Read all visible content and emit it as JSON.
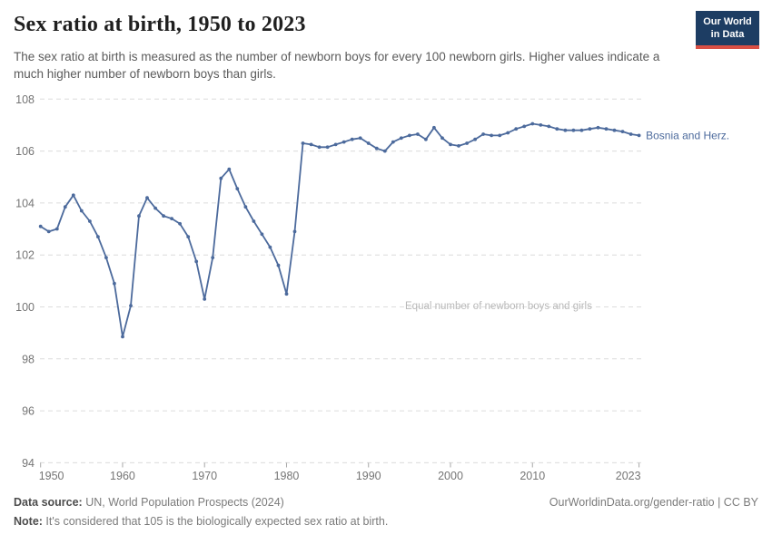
{
  "header": {
    "title": "Sex ratio at birth, 1950 to 2023",
    "subtitle": "The sex ratio at birth is measured as the number of newborn boys for every 100 newborn girls. Higher values indicate a much higher number of newborn boys than girls."
  },
  "logo": {
    "line1": "Our World",
    "line2": "in Data",
    "bg_color": "#1d3d63",
    "bar_color": "#d94f44"
  },
  "chart_data": {
    "type": "line",
    "title": "Sex ratio at birth, 1950 to 2023",
    "series": [
      {
        "name": "Bosnia and Herz.",
        "color": "#4c6a9c"
      }
    ],
    "years": [
      1950,
      1951,
      1952,
      1953,
      1954,
      1955,
      1956,
      1957,
      1958,
      1959,
      1960,
      1961,
      1962,
      1963,
      1964,
      1965,
      1966,
      1967,
      1968,
      1969,
      1970,
      1971,
      1972,
      1973,
      1974,
      1975,
      1976,
      1977,
      1978,
      1979,
      1980,
      1981,
      1982,
      1983,
      1984,
      1985,
      1986,
      1987,
      1988,
      1989,
      1990,
      1991,
      1992,
      1993,
      1994,
      1995,
      1996,
      1997,
      1998,
      1999,
      2000,
      2001,
      2002,
      2003,
      2004,
      2005,
      2006,
      2007,
      2008,
      2009,
      2010,
      2011,
      2012,
      2013,
      2014,
      2015,
      2016,
      2017,
      2018,
      2019,
      2020,
      2021,
      2022,
      2023
    ],
    "values": [
      103.1,
      102.9,
      103.0,
      103.85,
      104.3,
      103.7,
      103.3,
      102.7,
      101.9,
      100.9,
      98.85,
      100.05,
      103.5,
      104.2,
      103.8,
      103.5,
      103.4,
      103.2,
      102.7,
      101.75,
      100.3,
      101.9,
      104.95,
      105.3,
      104.55,
      103.85,
      103.3,
      102.8,
      102.3,
      101.6,
      100.5,
      102.9,
      106.3,
      106.25,
      106.15,
      106.15,
      106.25,
      106.35,
      106.45,
      106.5,
      106.3,
      106.1,
      106.0,
      106.35,
      106.5,
      106.6,
      106.65,
      106.45,
      106.9,
      106.5,
      106.25,
      106.2,
      106.3,
      106.45,
      106.65,
      106.6,
      106.6,
      106.7,
      106.85,
      106.95,
      107.05,
      107.0,
      106.95,
      106.85,
      106.8,
      106.8,
      106.8,
      106.85,
      106.9,
      106.85,
      106.8,
      106.75,
      106.65,
      106.6
    ],
    "ylim": [
      94,
      108
    ],
    "yticks": [
      94,
      96,
      98,
      100,
      102,
      104,
      106,
      108
    ],
    "xticks": [
      1950,
      1960,
      1970,
      1980,
      1990,
      2000,
      2010,
      2023
    ],
    "grid": true,
    "annotation": {
      "text": "Equal number of newborn boys and girls",
      "y_value": 100,
      "color": "#b9b9b9"
    },
    "end_label": "Bosnia and Herz.",
    "colors": {
      "line": "#4c6a9c",
      "grid": "#dcdcdc",
      "tick_text": "#757575",
      "tick_mark": "#a8a8a8"
    }
  },
  "footer": {
    "source_label": "Data source:",
    "source_text": " UN, World Population Prospects (2024)",
    "note_label": "Note:",
    "note_text": " It's considered that 105 is the biologically expected sex ratio at birth.",
    "right_text": "OurWorldinData.org/gender-ratio | CC BY"
  }
}
